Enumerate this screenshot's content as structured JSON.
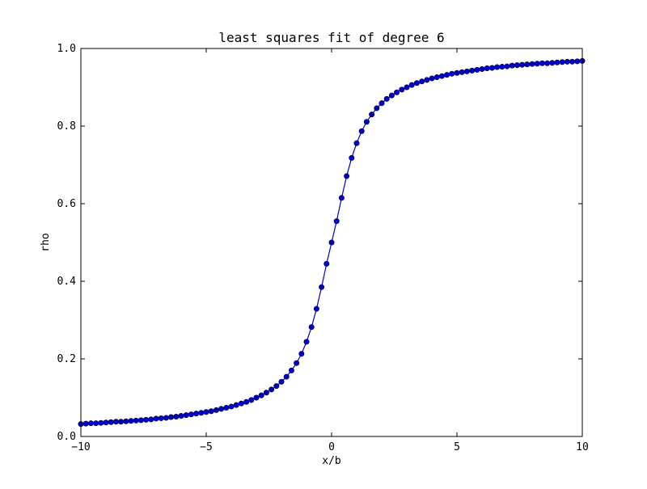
{
  "chart_data": {
    "type": "line",
    "title": "least squares fit of degree 6",
    "xlabel": "x/b",
    "ylabel": "rho",
    "xlim": [
      -10,
      10
    ],
    "ylim": [
      0.0,
      1.0
    ],
    "x_ticks": [
      -10,
      -5,
      0,
      5,
      10
    ],
    "x_tick_labels": [
      "−10",
      "−5",
      "0",
      "5",
      "10"
    ],
    "y_ticks": [
      0.0,
      0.2,
      0.4,
      0.6,
      0.8,
      1.0
    ],
    "y_tick_labels": [
      "0.0",
      "0.2",
      "0.4",
      "0.6",
      "0.8",
      "1.0"
    ],
    "grid": false,
    "legend": "none",
    "series": [
      {
        "color": "#0000cc",
        "marker": "circle",
        "x": [
          -10,
          -9.8,
          -9.6,
          -9.4,
          -9.2,
          -9,
          -8.8,
          -8.6,
          -8.4,
          -8.2,
          -8,
          -7.8,
          -7.6,
          -7.4,
          -7.2,
          -7,
          -6.8,
          -6.6,
          -6.4,
          -6.2,
          -6,
          -5.8,
          -5.6,
          -5.4,
          -5.2,
          -5,
          -4.8,
          -4.6,
          -4.4,
          -4.2,
          -4,
          -3.8,
          -3.6,
          -3.4,
          -3.2,
          -3,
          -2.8,
          -2.6,
          -2.4,
          -2.2,
          -2,
          -1.8,
          -1.6,
          -1.4,
          -1.2,
          -1,
          -0.8,
          -0.6,
          -0.4,
          -0.2,
          0,
          0.2,
          0.4,
          0.6,
          0.8,
          1,
          1.2,
          1.4,
          1.6,
          1.8,
          2,
          2.2,
          2.4,
          2.6,
          2.8,
          3,
          3.2,
          3.4,
          3.6,
          3.8,
          4,
          4.2,
          4.4,
          4.6,
          4.8,
          5,
          5.2,
          5.4,
          5.6,
          5.8,
          6,
          6.2,
          6.4,
          6.6,
          6.8,
          7,
          7.2,
          7.4,
          7.6,
          7.8,
          8,
          8.2,
          8.4,
          8.6,
          8.8,
          9,
          9.2,
          9.4,
          9.6,
          9.8,
          10
        ],
        "y": [
          0.032,
          0.033,
          0.034,
          0.034,
          0.035,
          0.036,
          0.037,
          0.038,
          0.038,
          0.039,
          0.04,
          0.041,
          0.042,
          0.043,
          0.044,
          0.046,
          0.047,
          0.048,
          0.05,
          0.051,
          0.053,
          0.055,
          0.057,
          0.059,
          0.061,
          0.063,
          0.065,
          0.068,
          0.071,
          0.074,
          0.077,
          0.081,
          0.085,
          0.089,
          0.094,
          0.1,
          0.106,
          0.113,
          0.121,
          0.13,
          0.141,
          0.154,
          0.17,
          0.189,
          0.213,
          0.244,
          0.282,
          0.329,
          0.385,
          0.445,
          0.5,
          0.555,
          0.615,
          0.671,
          0.718,
          0.756,
          0.787,
          0.811,
          0.83,
          0.846,
          0.859,
          0.87,
          0.879,
          0.887,
          0.894,
          0.9,
          0.906,
          0.911,
          0.915,
          0.919,
          0.923,
          0.926,
          0.929,
          0.932,
          0.935,
          0.937,
          0.939,
          0.941,
          0.943,
          0.945,
          0.947,
          0.949,
          0.95,
          0.952,
          0.953,
          0.954,
          0.956,
          0.957,
          0.958,
          0.959,
          0.96,
          0.961,
          0.962,
          0.962,
          0.963,
          0.964,
          0.965,
          0.966,
          0.966,
          0.967,
          0.968
        ]
      }
    ]
  }
}
